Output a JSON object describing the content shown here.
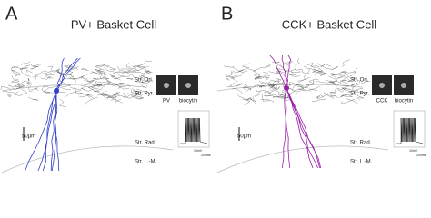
{
  "panels": [
    {
      "letter": "A",
      "title": "PV+ Basket Cell",
      "layers": [
        "Str. Ori.",
        "Str. Pyr.",
        "Str. Rad.",
        "Str. L.-M."
      ],
      "insets": [
        "PV",
        "biocytin"
      ],
      "scale_bar": "50µm",
      "trace_scale": [
        "10mV",
        "200ms"
      ]
    },
    {
      "letter": "B",
      "title": "CCK+ Basket Cell",
      "layers": [
        "Str. Ori.",
        "Str. Pyr.",
        "Str. Rad.",
        "Str. L.-M."
      ],
      "insets": [
        "CCK",
        "biocytin"
      ],
      "scale_bar": "50µm",
      "trace_scale": [
        "10mV",
        "200ms"
      ]
    }
  ]
}
